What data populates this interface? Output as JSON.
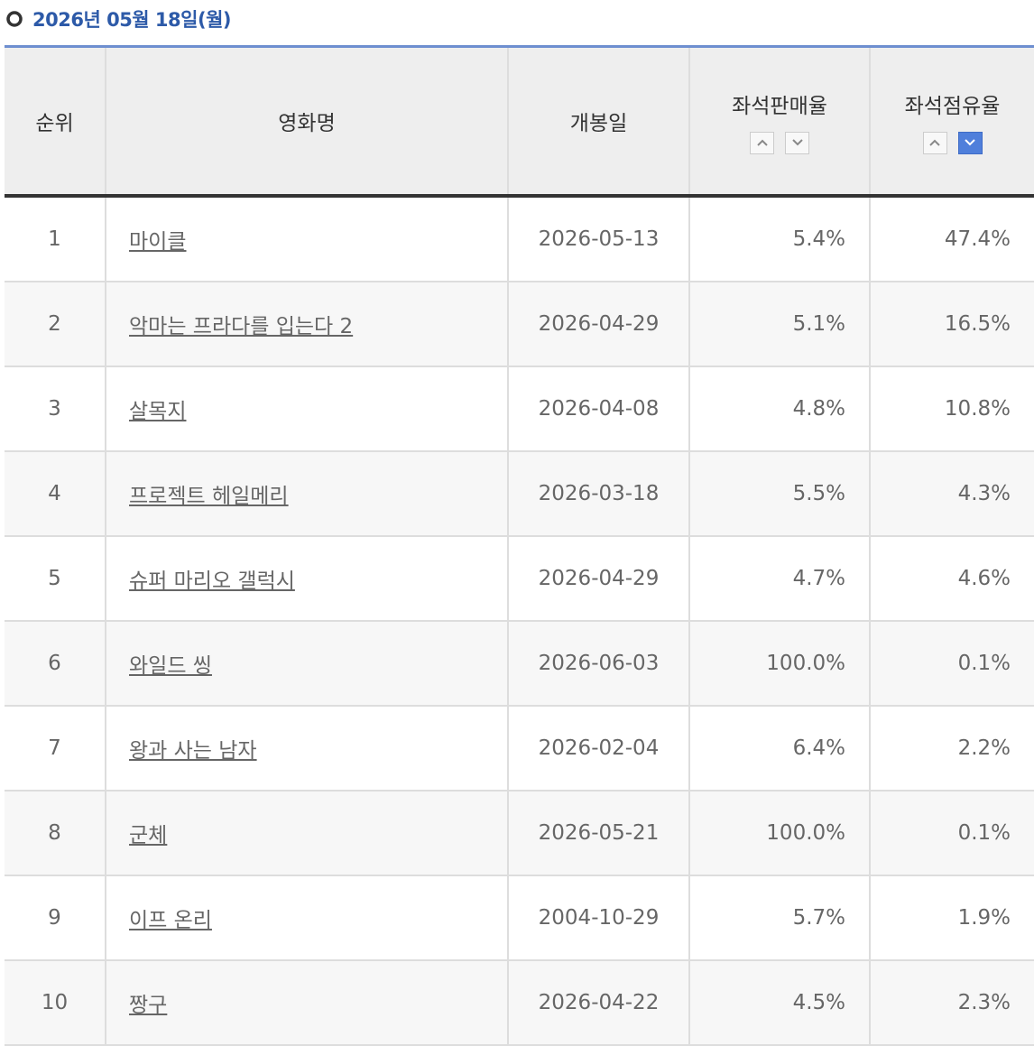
{
  "header": {
    "title": "2026년 05월 18일(월)"
  },
  "table": {
    "columns": [
      "순위",
      "영화명",
      "개봉일",
      "좌석판매율",
      "좌석점유율"
    ],
    "rows": [
      [
        "1",
        "마이클",
        "2026-05-13",
        "5.4%",
        "47.4%"
      ],
      [
        "2",
        "악마는 프라다를 입는다 2",
        "2026-04-29",
        "5.1%",
        "16.5%"
      ],
      [
        "3",
        "살목지",
        "2026-04-08",
        "4.8%",
        "10.8%"
      ],
      [
        "4",
        "프로젝트 헤일메리",
        "2026-03-18",
        "5.5%",
        "4.3%"
      ],
      [
        "5",
        "슈퍼 마리오 갤럭시",
        "2026-04-29",
        "4.7%",
        "4.6%"
      ],
      [
        "6",
        "와일드 씽",
        "2026-06-03",
        "100.0%",
        "0.1%"
      ],
      [
        "7",
        "왕과 사는 남자",
        "2026-02-04",
        "6.4%",
        "2.2%"
      ],
      [
        "8",
        "군체",
        "2026-05-21",
        "100.0%",
        "0.1%"
      ],
      [
        "9",
        "이프 온리",
        "2004-10-29",
        "5.7%",
        "1.9%"
      ],
      [
        "10",
        "짱구",
        "2026-04-22",
        "4.5%",
        "2.3%"
      ]
    ]
  }
}
